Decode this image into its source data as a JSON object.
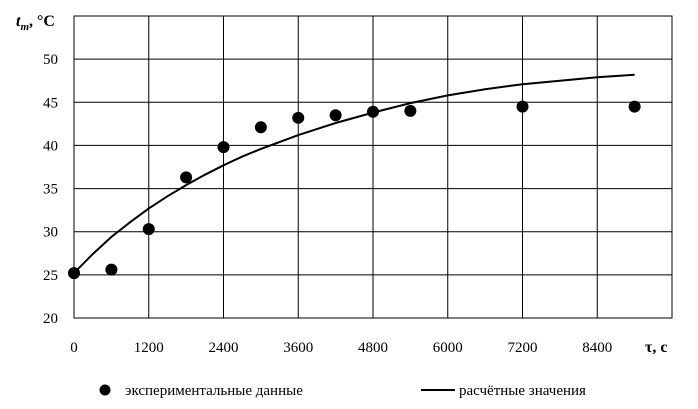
{
  "chart_data": {
    "type": "scatter",
    "xlabel": "τ, с",
    "ylabel_main": "t",
    "ylabel_sub": "т",
    "ylabel_rest": ", °С",
    "xlim": [
      0,
      9600
    ],
    "ylim": [
      20,
      55
    ],
    "x_ticks": [
      0,
      1200,
      2400,
      3600,
      4800,
      6000,
      7200,
      8400
    ],
    "y_ticks": [
      20,
      25,
      30,
      35,
      40,
      45,
      50
    ],
    "grid": true,
    "legend_position": "bottom",
    "series": [
      {
        "name": "экспериментальные данные",
        "kind": "scatter",
        "color": "#000000",
        "points": [
          {
            "x": 0,
            "y": 25.2
          },
          {
            "x": 600,
            "y": 25.6
          },
          {
            "x": 1200,
            "y": 30.3
          },
          {
            "x": 1800,
            "y": 36.3
          },
          {
            "x": 2400,
            "y": 39.8
          },
          {
            "x": 3000,
            "y": 42.1
          },
          {
            "x": 3600,
            "y": 43.2
          },
          {
            "x": 4200,
            "y": 43.5
          },
          {
            "x": 4800,
            "y": 43.9
          },
          {
            "x": 5400,
            "y": 44.0
          },
          {
            "x": 7200,
            "y": 44.5
          },
          {
            "x": 9000,
            "y": 44.5
          }
        ]
      },
      {
        "name": "расчётные значения",
        "kind": "line",
        "color": "#000000",
        "points": [
          {
            "x": 0,
            "y": 25.2
          },
          {
            "x": 300,
            "y": 27.4
          },
          {
            "x": 600,
            "y": 29.4
          },
          {
            "x": 900,
            "y": 31.1
          },
          {
            "x": 1200,
            "y": 32.7
          },
          {
            "x": 1500,
            "y": 34.1
          },
          {
            "x": 1800,
            "y": 35.4
          },
          {
            "x": 2100,
            "y": 36.6
          },
          {
            "x": 2400,
            "y": 37.7
          },
          {
            "x": 2700,
            "y": 38.7
          },
          {
            "x": 3000,
            "y": 39.6
          },
          {
            "x": 3600,
            "y": 41.2
          },
          {
            "x": 4200,
            "y": 42.6
          },
          {
            "x": 4800,
            "y": 43.8
          },
          {
            "x": 5400,
            "y": 44.9
          },
          {
            "x": 6000,
            "y": 45.8
          },
          {
            "x": 6600,
            "y": 46.5
          },
          {
            "x": 7200,
            "y": 47.1
          },
          {
            "x": 7800,
            "y": 47.5
          },
          {
            "x": 8400,
            "y": 47.9
          },
          {
            "x": 9000,
            "y": 48.2
          }
        ]
      }
    ]
  }
}
